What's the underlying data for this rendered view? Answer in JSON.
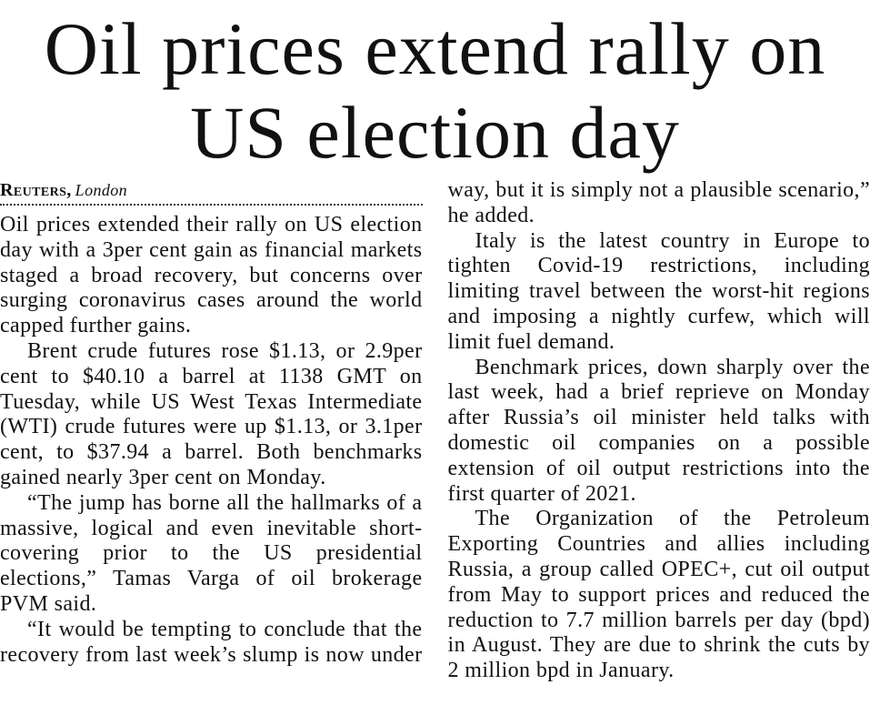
{
  "headline": "Oil prices extend rally on US election day",
  "byline": {
    "agency": "Reuters,",
    "location": "London"
  },
  "paragraphs": [
    "Oil prices extended their rally on US election day with a 3per cent gain as financial markets staged a broad recovery, but concerns over surging coronavirus cases around the world capped further gains.",
    "Brent crude futures rose $1.13, or 2.9per cent to $40.10 a barrel at 1138 GMT on Tuesday, while US West Texas Intermediate (WTI) crude futures were up $1.13, or 3.1per cent, to $37.94 a barrel. Both benchmarks gained nearly 3per cent on Monday.",
    "“The jump has borne all the hallmarks of a massive, logical and even inevitable short-covering prior to the US presidential elections,” Tamas Varga of oil brokerage PVM said.",
    "“It would be tempting to conclude that the recovery from last week’s slump is now under way, but it is simply not a plausible scenario,” he added.",
    "Italy is the latest country in Europe to tighten Covid-19 restrictions, including limiting travel between the worst-hit regions and imposing a nightly curfew, which will limit fuel demand.",
    "Benchmark prices, down sharply over the last week, had a brief reprieve on Monday after Russia’s oil minister held talks with domestic oil companies on a possible extension of oil output restrictions into the first quarter of 2021.",
    "The Organization of the Petroleum Exporting Countries and allies including Russia, a group called OPEC+, cut oil output from May to support prices and reduced the reduction to 7.7 million barrels per day (bpd) in August. They are due to shrink the cuts by 2 million bpd in January."
  ]
}
